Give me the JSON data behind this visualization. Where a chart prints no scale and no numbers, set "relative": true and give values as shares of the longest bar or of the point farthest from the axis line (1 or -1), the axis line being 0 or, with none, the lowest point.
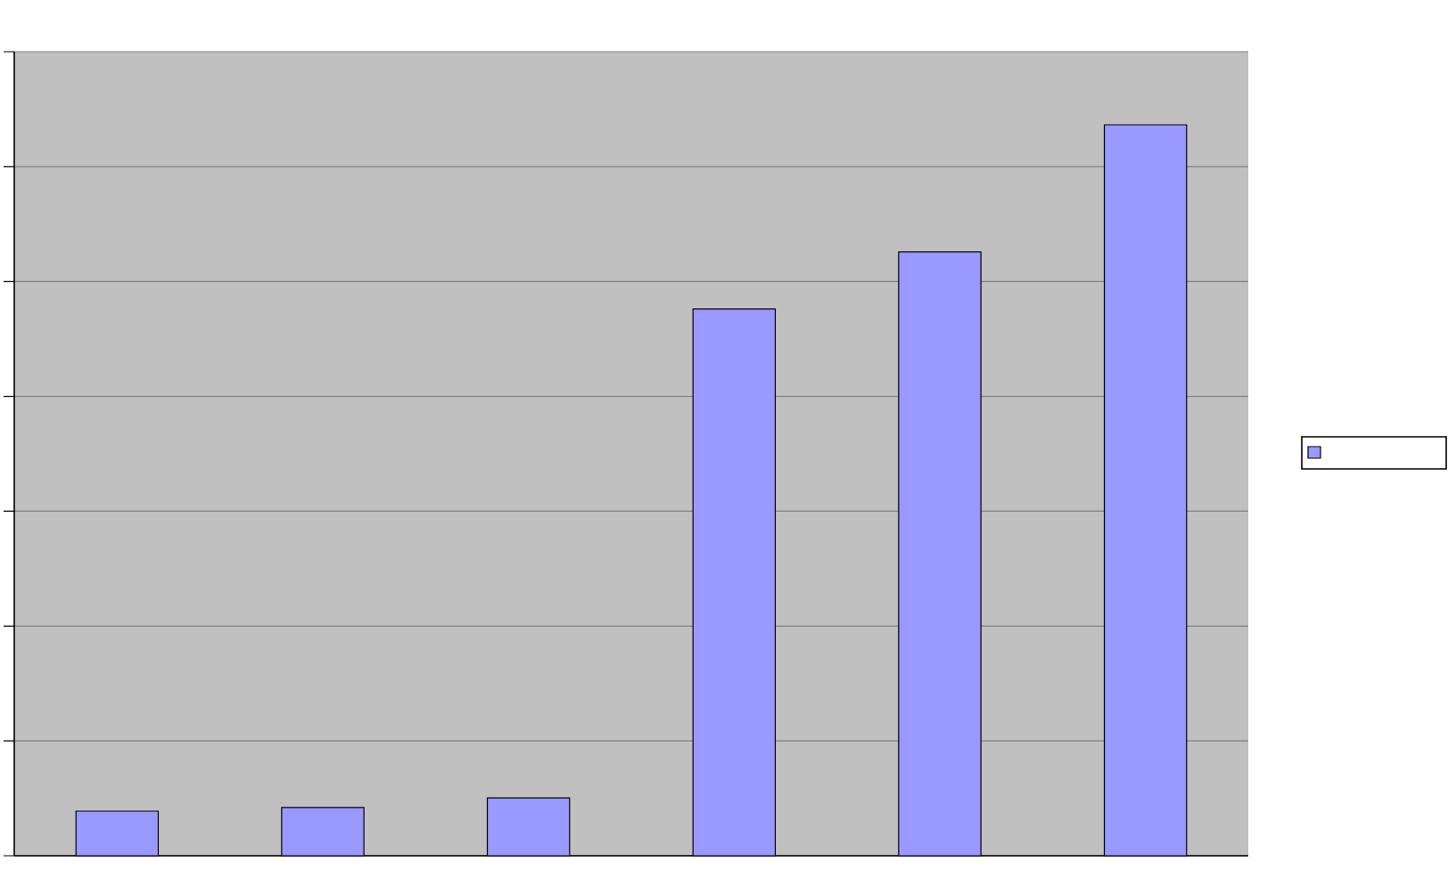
{
  "chart_data": {
    "type": "bar",
    "categories": [
      null,
      null,
      null,
      null,
      null,
      null
    ],
    "values": [
      0.061,
      0.066,
      0.079,
      0.748,
      0.826,
      1
    ],
    "relative": true,
    "color": "#9999ff",
    "grid": "y"
  }
}
